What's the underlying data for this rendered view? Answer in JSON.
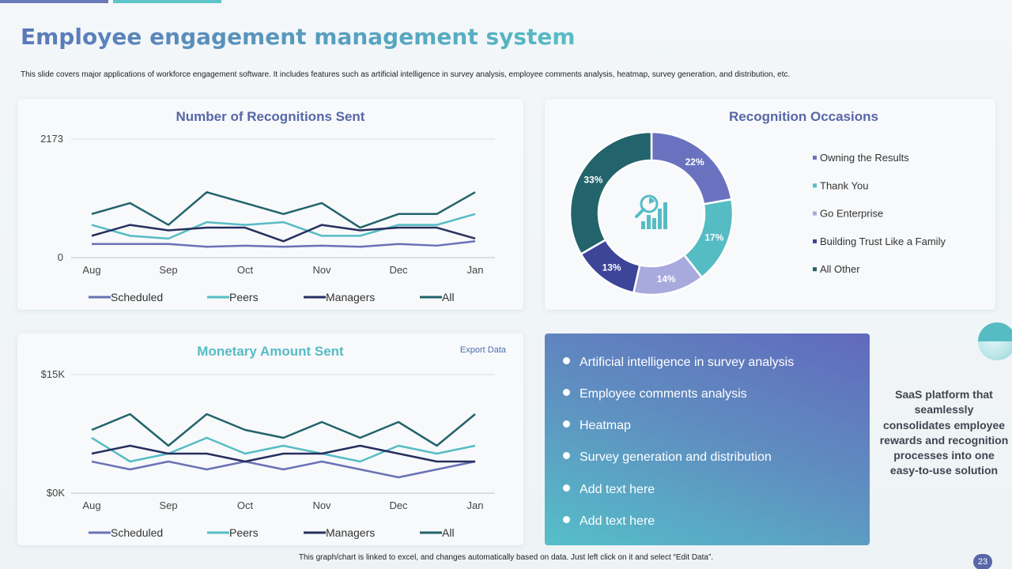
{
  "header": {
    "title": "Employee engagement management system",
    "subtitle": "This slide covers major applications of workforce engagement software. It includes features such as artificial intelligence in survey analysis, employee comments analysis, heatmap, survey generation, and distribution, etc."
  },
  "recognitions_card": {
    "title": "Number of Recognitions Sent"
  },
  "occasions_card": {
    "title": "Recognition Occasions"
  },
  "monetary_card": {
    "title": "Monetary Amount Sent",
    "export_label": "Export Data"
  },
  "features": [
    "Artificial intelligence in survey analysis",
    "Employee comments analysis",
    "Heatmap",
    "Survey generation and distribution",
    "Add text here",
    "Add text here"
  ],
  "side_text": "SaaS platform that seamlessly consolidates employee rewards and recognition processes into one easy-to-use solution",
  "footer": {
    "note": "This graph/chart is linked to excel, and changes automatically based on data. Just left click on it and select “Edit Data”.",
    "page_number": "23"
  },
  "colors": {
    "scheduled": "#6a72b5",
    "peers": "#56bcc4",
    "managers": "#262f5e",
    "all": "#23636b",
    "title_blue": "#5867a6",
    "title_teal": "#56bcc4"
  },
  "chart_data": [
    {
      "type": "line",
      "title": "Number of Recognitions Sent",
      "x": [
        "Aug",
        "Aug-Sep",
        "Sep",
        "Sep-Oct",
        "Oct",
        "Oct-Nov",
        "Nov",
        "Nov-Dec",
        "Dec",
        "Dec-Jan",
        "Jan"
      ],
      "x_tick_labels": [
        "Aug",
        "Sep",
        "Oct",
        "Nov",
        "Dec",
        "Jan"
      ],
      "y_tick_labels": [
        "0",
        "2173"
      ],
      "ylim": [
        0,
        2173
      ],
      "grid": true,
      "legend": "bottom",
      "series": [
        {
          "name": "Scheduled",
          "values": [
            250,
            250,
            250,
            200,
            220,
            200,
            220,
            200,
            250,
            220,
            300
          ]
        },
        {
          "name": "Peers",
          "values": [
            600,
            400,
            350,
            650,
            600,
            650,
            400,
            400,
            600,
            600,
            800
          ]
        },
        {
          "name": "Managers",
          "values": [
            400,
            600,
            500,
            550,
            550,
            300,
            600,
            500,
            550,
            550,
            350
          ]
        },
        {
          "name": "All",
          "values": [
            800,
            1000,
            600,
            1200,
            1000,
            800,
            1000,
            550,
            800,
            800,
            1200
          ]
        }
      ]
    },
    {
      "type": "pie",
      "title": "Recognition Occasions",
      "legend": "right",
      "categories": [
        "Owning the Results",
        "Thank You",
        "Go Enterprise",
        "Building Trust Like a Family",
        "All Other"
      ],
      "values": [
        22,
        17,
        14,
        13,
        33
      ],
      "labels": [
        "22%",
        "17%",
        "14%",
        "13%",
        "33%"
      ],
      "colors": [
        "#6a72c0",
        "#56bcc4",
        "#a8a9dd",
        "#3c4598",
        "#23636b"
      ]
    },
    {
      "type": "line",
      "title": "Monetary Amount Sent",
      "x": [
        "Aug",
        "Aug-Sep",
        "Sep",
        "Sep-Oct",
        "Oct",
        "Oct-Nov",
        "Nov",
        "Nov-Dec",
        "Dec",
        "Dec-Jan",
        "Jan"
      ],
      "x_tick_labels": [
        "Aug",
        "Sep",
        "Oct",
        "Nov",
        "Dec",
        "Jan"
      ],
      "y_tick_labels": [
        "$0K",
        "$15K"
      ],
      "ylim": [
        0,
        15000
      ],
      "grid": true,
      "legend": "bottom",
      "series": [
        {
          "name": "Scheduled",
          "values": [
            4000,
            3000,
            4000,
            3000,
            4000,
            3000,
            4000,
            3000,
            2000,
            3000,
            4000
          ]
        },
        {
          "name": "Peers",
          "values": [
            7000,
            4000,
            5000,
            7000,
            5000,
            6000,
            5000,
            4000,
            6000,
            5000,
            6000
          ]
        },
        {
          "name": "Managers",
          "values": [
            5000,
            6000,
            5000,
            5000,
            4000,
            5000,
            5000,
            6000,
            5000,
            4000,
            4000
          ]
        },
        {
          "name": "All",
          "values": [
            8000,
            10000,
            6000,
            10000,
            8000,
            7000,
            9000,
            7000,
            9000,
            6000,
            10000
          ]
        }
      ]
    }
  ]
}
